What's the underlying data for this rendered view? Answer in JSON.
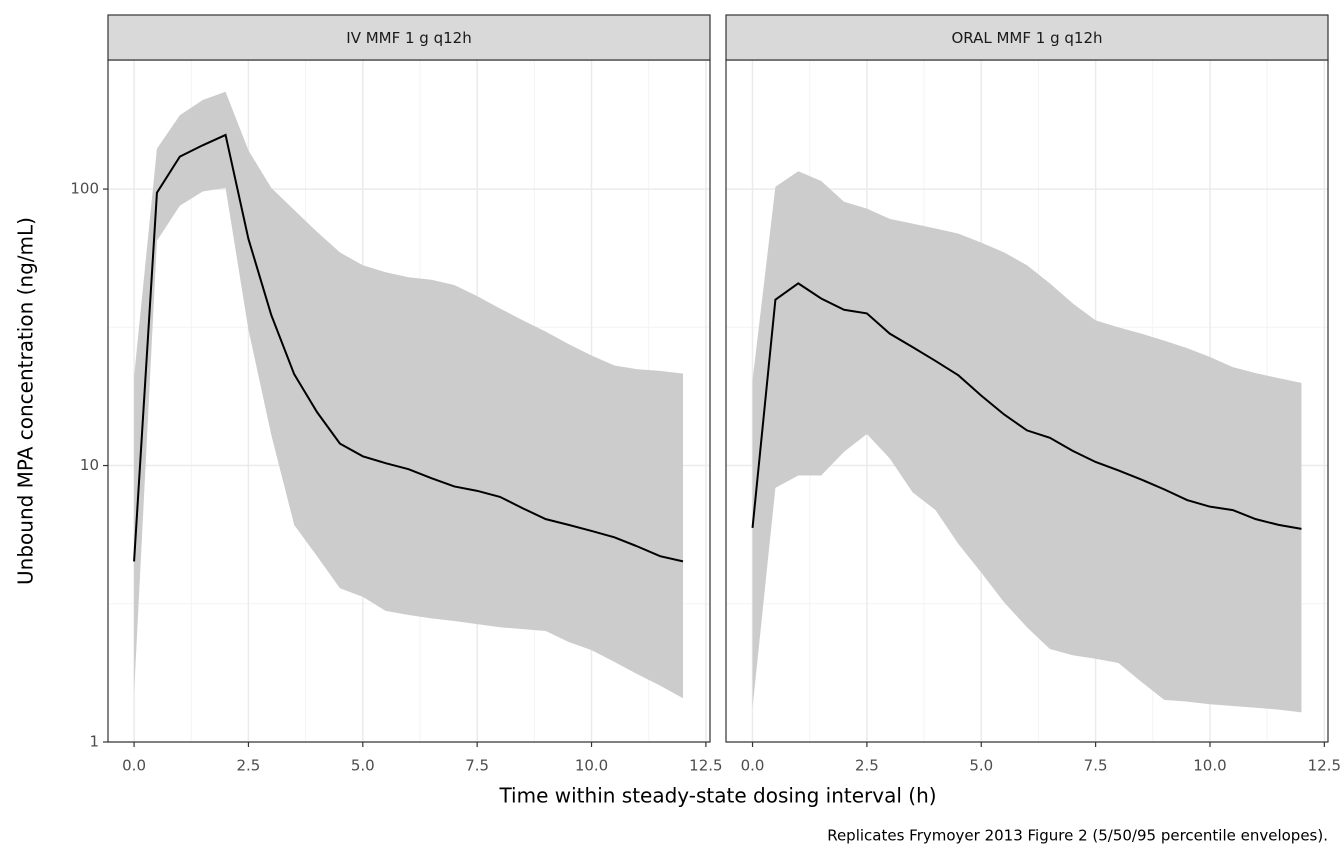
{
  "figure": {
    "x_label": "Time within steady-state dosing interval (h)",
    "y_label": "Unbound MPA concentration (ng/mL)",
    "caption": "Replicates Frymoyer 2013 Figure 2 (5/50/95 percentile envelopes)."
  },
  "chart_data": [
    {
      "type": "line",
      "title": "IV MMF 1 g q12h",
      "log_y": true,
      "grid": true,
      "x": [
        0,
        0.5,
        1,
        1.5,
        2,
        2.5,
        3,
        3.5,
        4,
        4.5,
        5,
        5.5,
        6,
        6.5,
        7,
        7.5,
        8,
        8.5,
        9,
        9.5,
        10,
        10.5,
        11,
        11.5,
        12
      ],
      "series": [
        {
          "color": "#000000",
          "values": [
            4.5,
            97,
            131,
            144,
            157,
            66,
            35,
            21.4,
            15.6,
            12,
            10.8,
            10.2,
            9.7,
            9.0,
            8.4,
            8.1,
            7.7,
            7.0,
            6.4,
            6.1,
            5.8,
            5.5,
            5.1,
            4.7,
            4.5
          ]
        }
      ],
      "band": {
        "color": "#cccccc",
        "lower": [
          1.5,
          65,
          87,
          98,
          101,
          31,
          12.9,
          6.1,
          4.7,
          3.6,
          3.35,
          2.98,
          2.88,
          2.8,
          2.74,
          2.67,
          2.6,
          2.56,
          2.52,
          2.3,
          2.15,
          1.95,
          1.76,
          1.6,
          1.44
        ],
        "upper": [
          21,
          140,
          185,
          210,
          225,
          138,
          101,
          84,
          70,
          59,
          53,
          50,
          48,
          47,
          45,
          41,
          37,
          33.5,
          30.5,
          27.5,
          25,
          23,
          22.3,
          22,
          21.5
        ]
      },
      "xlim": [
        -0.57,
        12.59
      ],
      "xticks": [
        {
          "value": 0,
          "label": "0.0"
        },
        2.5,
        {
          "value": 5,
          "label": "5.0"
        },
        7.5,
        {
          "value": 10,
          "label": "10.0"
        },
        12.5
      ],
      "ylim": [
        1,
        293
      ],
      "yticks": [
        1,
        10,
        100
      ]
    },
    {
      "type": "line",
      "title": "ORAL MMF 1 g q12h",
      "log_y": true,
      "grid": true,
      "x": [
        0,
        0.5,
        1,
        1.5,
        2,
        2.5,
        3,
        3.5,
        4,
        4.5,
        5,
        5.5,
        6,
        6.5,
        7,
        7.5,
        8,
        8.5,
        9,
        9.5,
        10,
        10.5,
        11,
        11.5,
        12
      ],
      "series": [
        {
          "color": "#000000",
          "values": [
            5.95,
            39.8,
            45.6,
            40.2,
            36.6,
            35.5,
            30,
            26.8,
            23.9,
            21.2,
            17.9,
            15.3,
            13.4,
            12.6,
            11.3,
            10.3,
            9.6,
            8.9,
            8.2,
            7.5,
            7.1,
            6.9,
            6.4,
            6.1,
            5.9
          ]
        }
      ],
      "band": {
        "color": "#cccccc",
        "lower": [
          1.33,
          8.3,
          9.2,
          9.2,
          11.2,
          13,
          10.6,
          8.0,
          6.9,
          5.2,
          4.1,
          3.2,
          2.6,
          2.17,
          2.06,
          2.0,
          1.93,
          1.65,
          1.42,
          1.4,
          1.37,
          1.35,
          1.33,
          1.31,
          1.28
        ],
        "upper": [
          20.3,
          102,
          116,
          107,
          90,
          85,
          78,
          75,
          72,
          69,
          64,
          59,
          53,
          45.6,
          38.6,
          33.5,
          31.6,
          30,
          28.3,
          26.6,
          24.7,
          22.7,
          21.6,
          20.7,
          19.9
        ]
      },
      "xlim": [
        -0.58,
        12.58
      ],
      "xticks": [
        {
          "value": 0,
          "label": "0.0"
        },
        2.5,
        {
          "value": 5,
          "label": "5.0"
        },
        7.5,
        {
          "value": 10,
          "label": "10.0"
        },
        12.5
      ],
      "ylim": [
        1,
        293
      ],
      "yticks": [
        1,
        10,
        100
      ]
    }
  ]
}
